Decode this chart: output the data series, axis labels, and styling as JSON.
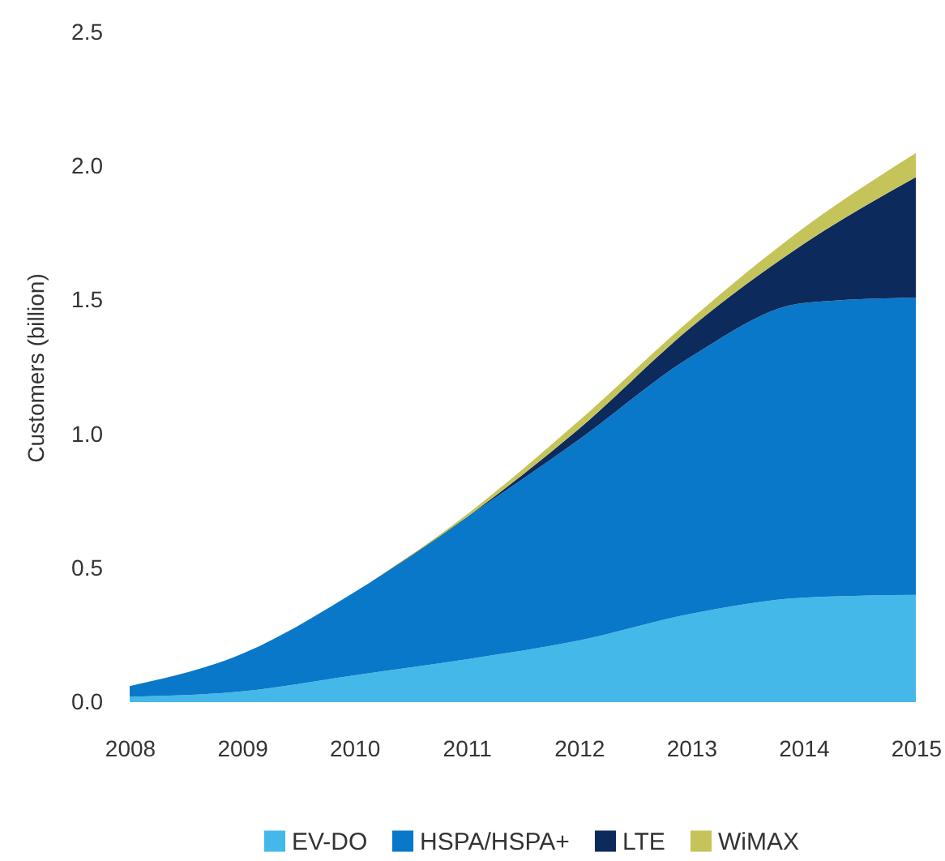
{
  "chart_data": {
    "type": "area",
    "ylabel": "Customers (billion)",
    "stacked": true,
    "legend": "bottom",
    "grid": false,
    "x": [
      2008,
      2009,
      2010,
      2011,
      2012,
      2013,
      2014,
      2015
    ],
    "xlim": [
      2008,
      2015
    ],
    "xticks": [
      2008,
      2009,
      2010,
      2011,
      2012,
      2013,
      2014,
      2015
    ],
    "ylim": [
      0,
      2.5
    ],
    "yticks": [
      {
        "value": 0,
        "label": "0.0"
      },
      0.5,
      {
        "value": 1,
        "label": "1.0"
      },
      1.5,
      {
        "value": 2,
        "label": "2.0"
      },
      2.5
    ],
    "series": [
      {
        "name": "EV-DO",
        "color": "#45b8ea",
        "values": [
          0.02,
          0.04,
          0.1,
          0.16,
          0.23,
          0.33,
          0.39,
          0.4
        ]
      },
      {
        "name": "HSPA/HSPA+",
        "color": "#0a78c8",
        "values": [
          0.04,
          0.14,
          0.31,
          0.53,
          0.75,
          0.96,
          1.1,
          1.11
        ]
      },
      {
        "name": "LTE",
        "color": "#0d2a5c",
        "values": [
          0,
          0,
          0,
          0,
          0.04,
          0.11,
          0.22,
          0.45
        ]
      },
      {
        "name": "WiMAX",
        "color": "#c5c45a",
        "values": [
          0,
          0,
          0,
          0.01,
          0.03,
          0.03,
          0.06,
          0.09
        ]
      }
    ]
  }
}
